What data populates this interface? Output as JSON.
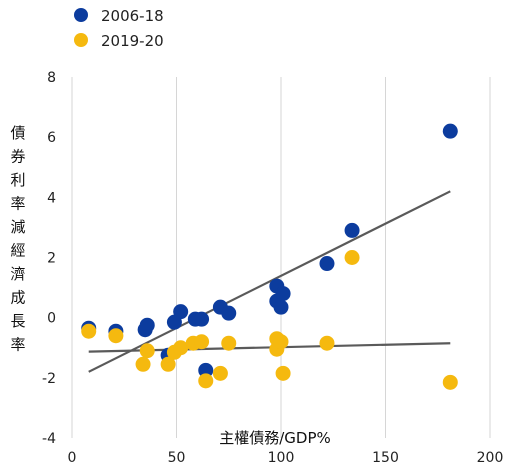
{
  "chart_data": {
    "type": "scatter",
    "xlabel": "主權債務/GDP%",
    "ylabel": "債券利率減經濟成長率",
    "xlim": [
      0,
      200
    ],
    "ylim": [
      -4,
      8
    ],
    "x_ticks": [
      0,
      50,
      100,
      150,
      200
    ],
    "y_ticks": [
      -4,
      -2,
      0,
      2,
      4,
      6,
      8
    ],
    "grid": "vertical",
    "legend": "top-left",
    "series": [
      {
        "name": "2006-18",
        "color": "#0c3c9e",
        "points": [
          [
            8,
            -0.35
          ],
          [
            21,
            -0.45
          ],
          [
            35,
            -0.4
          ],
          [
            36,
            -0.25
          ],
          [
            46,
            -1.25
          ],
          [
            49,
            -0.15
          ],
          [
            52,
            0.2
          ],
          [
            59,
            -0.05
          ],
          [
            62,
            -0.05
          ],
          [
            64,
            -1.75
          ],
          [
            71,
            0.35
          ],
          [
            75,
            0.15
          ],
          [
            98,
            1.05
          ],
          [
            98,
            0.55
          ],
          [
            100,
            0.35
          ],
          [
            101,
            0.8
          ],
          [
            122,
            1.8
          ],
          [
            134,
            2.9
          ],
          [
            181,
            6.2
          ]
        ],
        "trend": [
          [
            8,
            -1.8
          ],
          [
            181,
            4.2
          ]
        ]
      },
      {
        "name": "2019-20",
        "color": "#f5b90f",
        "points": [
          [
            8,
            -0.45
          ],
          [
            21,
            -0.6
          ],
          [
            34,
            -1.55
          ],
          [
            36,
            -1.1
          ],
          [
            46,
            -1.55
          ],
          [
            49,
            -1.15
          ],
          [
            52,
            -1.0
          ],
          [
            58,
            -0.85
          ],
          [
            62,
            -0.8
          ],
          [
            64,
            -2.1
          ],
          [
            71,
            -1.85
          ],
          [
            75,
            -0.85
          ],
          [
            98,
            -0.7
          ],
          [
            98,
            -1.05
          ],
          [
            100,
            -0.8
          ],
          [
            101,
            -1.85
          ],
          [
            122,
            -0.85
          ],
          [
            134,
            2.0
          ],
          [
            181,
            -2.15
          ]
        ],
        "trend": [
          [
            8,
            -1.13
          ],
          [
            181,
            -0.85
          ]
        ]
      }
    ]
  }
}
